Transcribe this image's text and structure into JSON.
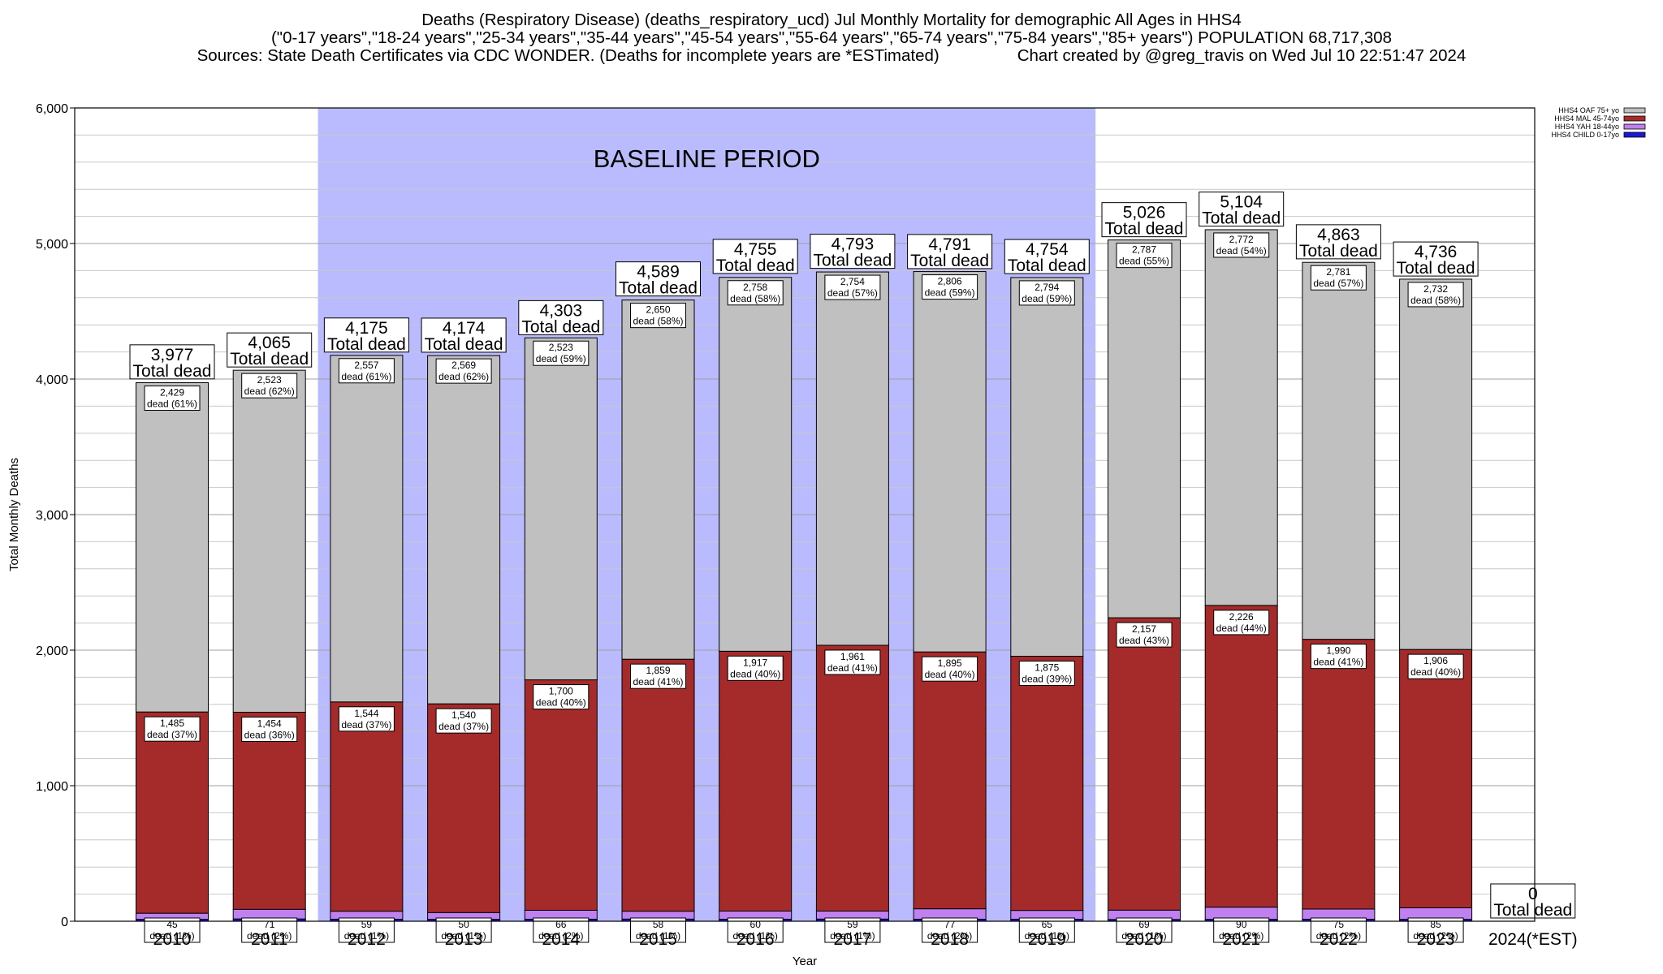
{
  "chart_data": {
    "type": "bar",
    "title_lines": [
      "Deaths (Respiratory Disease) (deaths_respiratory_ucd) Jul Monthly Mortality for demographic All Ages in HHS4",
      "(\"0-17 years\",\"18-24 years\",\"25-34 years\",\"35-44 years\",\"45-54 years\",\"55-64 years\",\"65-74 years\",\"75-84 years\",\"85+ years\") POPULATION 68,717,308",
      "Sources: State Death Certificates via CDC WONDER. (Deaths for incomplete years are *ESTimated)",
      "Chart created by @greg_travis on Wed Jul 10 22:51:47 2024"
    ],
    "xlabel": "Year",
    "ylabel": "Total Monthly Deaths",
    "ylim": [
      0,
      6000
    ],
    "yticks": [
      0,
      1000,
      2000,
      3000,
      4000,
      5000,
      6000
    ],
    "ytick_labels": [
      "0",
      "1,000",
      "2,000",
      "3,000",
      "4,000",
      "5,000",
      "6,000"
    ],
    "categories": [
      "2010",
      "2011",
      "2012",
      "2013",
      "2014",
      "2015",
      "2016",
      "2017",
      "2018",
      "2019",
      "2020",
      "2021",
      "2022",
      "2023",
      "2024(*EST)"
    ],
    "baseline": {
      "label": "BASELINE PERIOD",
      "from": "2012",
      "to": "2019",
      "color": "#babaff"
    },
    "colors": {
      "child": "#1a1ad6",
      "yah": "#c080f0",
      "mal": "#a52a2a",
      "oaf": "#c0c0c0"
    },
    "series": [
      {
        "key": "child",
        "name": "HHS4 CHILD 0-17yo",
        "values": [
          14,
          17,
          15,
          14,
          15,
          16,
          15,
          16,
          15,
          15,
          13,
          14,
          15,
          14,
          0
        ]
      },
      {
        "key": "yah",
        "name": "HHS4 YAH 18-44yo",
        "values": [
          45,
          71,
          59,
          50,
          66,
          58,
          60,
          59,
          77,
          65,
          69,
          90,
          75,
          85,
          0
        ]
      },
      {
        "key": "mal",
        "name": "HHS4 MAL 45-74yo",
        "values": [
          1485,
          1454,
          1544,
          1540,
          1700,
          1859,
          1917,
          1961,
          1895,
          1875,
          2157,
          2226,
          1990,
          1906,
          0
        ]
      },
      {
        "key": "oaf",
        "name": "HHS4 OAF 75+ yo",
        "values": [
          2429,
          2523,
          2557,
          2569,
          2523,
          2650,
          2758,
          2754,
          2806,
          2794,
          2787,
          2772,
          2781,
          2732,
          0
        ]
      }
    ],
    "totals": [
      3977,
      4065,
      4175,
      4174,
      4303,
      4589,
      4755,
      4793,
      4791,
      4754,
      5026,
      5104,
      4863,
      4736,
      0
    ],
    "total_labels": [
      "3,977",
      "4,065",
      "4,175",
      "4,174",
      "4,303",
      "4,589",
      "4,755",
      "4,793",
      "4,791",
      "4,754",
      "5,026",
      "5,104",
      "4,863",
      "4,736",
      "0"
    ],
    "total_suffix": "Total dead",
    "segment_labels": {
      "oaf": [
        "2,429",
        "2,523",
        "2,557",
        "2,569",
        "2,523",
        "2,650",
        "2,758",
        "2,754",
        "2,806",
        "2,794",
        "2,787",
        "2,772",
        "2,781",
        "2,732"
      ],
      "oaf_pct": [
        "dead (61%)",
        "dead (62%)",
        "dead (61%)",
        "dead (62%)",
        "dead (59%)",
        "dead (58%)",
        "dead (58%)",
        "dead (57%)",
        "dead (59%)",
        "dead (59%)",
        "dead (55%)",
        "dead (54%)",
        "dead (57%)",
        "dead (58%)"
      ],
      "mal": [
        "1,485",
        "1,454",
        "1,544",
        "1,540",
        "1,700",
        "1,859",
        "1,917",
        "1,961",
        "1,895",
        "1,875",
        "2,157",
        "2,226",
        "1,990",
        "1,906"
      ],
      "mal_pct": [
        "dead (37%)",
        "dead (36%)",
        "dead (37%)",
        "dead (37%)",
        "dead (40%)",
        "dead (41%)",
        "dead (40%)",
        "dead (41%)",
        "dead (40%)",
        "dead (39%)",
        "dead (43%)",
        "dead (44%)",
        "dead (41%)",
        "dead (40%)"
      ],
      "yah": [
        "45",
        "71",
        "59",
        "50",
        "66",
        "58",
        "60",
        "59",
        "77",
        "65",
        "69",
        "90",
        "75",
        "85"
      ],
      "yah_pct": [
        "dead (1%)",
        "dead (2%)",
        "dead (1%)",
        "dead (1%)",
        "dead (2%)",
        "dead (1%)",
        "dead (1%)",
        "dead (1%)",
        "dead (2%)",
        "dead (1%)",
        "dead (1%)",
        "dead (2%)",
        "dead (2%)",
        "dead (2%)"
      ]
    },
    "legend": {
      "position": "top-right",
      "entries": [
        "HHS4 OAF 75+ yo",
        "HHS4 MAL 45-74yo",
        "HHS4 YAH 18-44yo",
        "HHS4 CHILD 0-17yo"
      ]
    },
    "grid": true
  }
}
